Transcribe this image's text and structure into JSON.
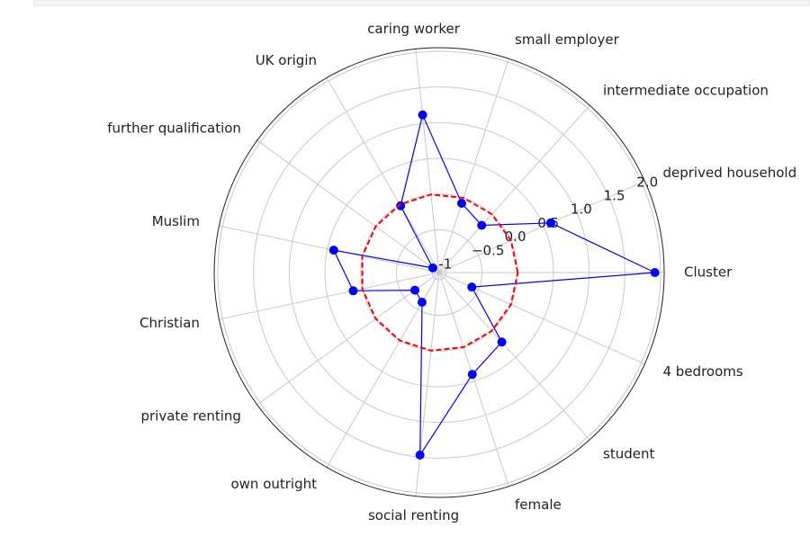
{
  "chart_data": {
    "type": "radar",
    "categories": [
      "Cluster",
      "deprived household",
      "intermediate occupation",
      "small employer",
      "caring worker",
      "UK origin",
      "further qualification",
      "Muslim",
      "Christian",
      "private renting",
      "own outright",
      "social renting",
      "female",
      "student",
      "4 bedrooms"
    ],
    "series": [
      {
        "color": "#0000ff",
        "values": [
          1.92,
          0.61,
          -0.21,
          -0.08,
          1.12,
          -0.02,
          -0.99,
          0.41,
          0.13,
          -0.68,
          -0.62,
          1.47,
          0.4,
          0.21,
          -0.6
        ]
      },
      {
        "color": "#ff0000",
        "dashed": true,
        "values": [
          0,
          0,
          0,
          0,
          0,
          0,
          0,
          0,
          0,
          0,
          0,
          0,
          0,
          0,
          0
        ]
      }
    ],
    "ylim": [
      -1.1,
      2.05
    ],
    "yticks": [
      -1.0,
      {
        "value": -0.5,
        "label": "−0.5"
      },
      {
        "value": 0.0,
        "label": "0.0"
      },
      0.5,
      {
        "value": 1.0,
        "label": "1.0"
      },
      1.5,
      {
        "value": 2.0,
        "label": "2.0"
      }
    ],
    "grid": true
  }
}
